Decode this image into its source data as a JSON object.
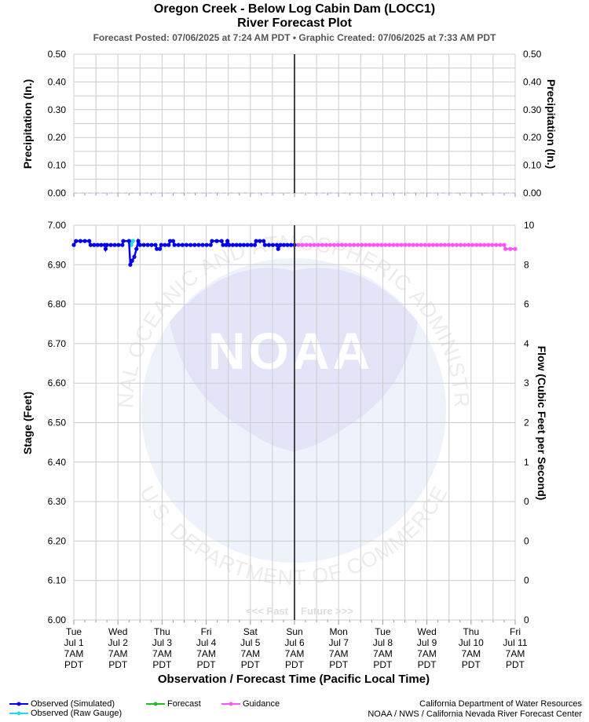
{
  "header": {
    "title": "Oregon Creek - Below Log Cabin Dam (LOCC1)",
    "subtitle": "River Forecast Plot",
    "posted_line": "Forecast Posted: 07/06/2025 at 7:24 AM PDT  •  Graphic Created: 07/06/2025 at 7:33 AM PDT"
  },
  "watermark": {
    "logo_text": "NOAA",
    "ring_top": "NATIONAL OCEANIC AND ATMOSPHERIC ADMINISTRATION",
    "ring_bottom": "U.S. DEPARTMENT OF COMMERCE"
  },
  "past_label": "<<< Past",
  "future_label": "Future >>>",
  "legend": {
    "observed_sim": "Observed (Simulated)",
    "observed_raw": "Observed (Raw Gauge)",
    "forecast": "Forecast",
    "guidance": "Guidance"
  },
  "credits": {
    "line1": "California Department of Water Resources",
    "line2": "NOAA / NWS / California Nevada River Forecast Center"
  },
  "colors": {
    "observed_sim": "#0000ee",
    "observed_raw": "#22dddd",
    "forecast": "#22bb22",
    "guidance": "#ff55ff",
    "precip": "#aaaaee",
    "now_line": "#444444",
    "grid": "#cccccc"
  },
  "chart_data": [
    {
      "type": "line",
      "panel": "precipitation",
      "ylabel": "Precipitation (In.)",
      "ylabel_right": "Precipitation (In.)",
      "ylim": [
        0,
        0.5
      ],
      "yticks": [
        "0.00",
        "0.10",
        "0.20",
        "0.30",
        "0.40",
        "0.50"
      ],
      "grid": true,
      "series": [
        {
          "values": [
            [
              0,
              0
            ],
            [
              10,
              0
            ]
          ]
        }
      ]
    },
    {
      "type": "line",
      "panel": "stage",
      "xlabel": "Observation / Forecast Time (Pacific Local Time)",
      "ylabel": "Stage (Feet)",
      "ylabel_right": "Flow (Cubic Feet per Second)",
      "ylim": [
        6.0,
        7.0
      ],
      "yticks": [
        "6.00",
        "6.10",
        "6.20",
        "6.30",
        "6.40",
        "6.50",
        "6.60",
        "6.70",
        "6.80",
        "6.90",
        "7.00"
      ],
      "yticks_right": [
        "0",
        "0",
        "0",
        "0",
        "1",
        "2",
        "3",
        "4",
        "6",
        "8",
        "10"
      ],
      "x_ticks": [
        [
          "Tue",
          "Jul 1",
          "7AM",
          "PDT"
        ],
        [
          "Wed",
          "Jul 2",
          "7AM",
          "PDT"
        ],
        [
          "Thu",
          "Jul 3",
          "7AM",
          "PDT"
        ],
        [
          "Fri",
          "Jul 4",
          "7AM",
          "PDT"
        ],
        [
          "Sat",
          "Jul 5",
          "7AM",
          "PDT"
        ],
        [
          "Sun",
          "Jul 6",
          "7AM",
          "PDT"
        ],
        [
          "Mon",
          "Jul 7",
          "7AM",
          "PDT"
        ],
        [
          "Tue",
          "Jul 8",
          "7AM",
          "PDT"
        ],
        [
          "Wed",
          "Jul 9",
          "7AM",
          "PDT"
        ],
        [
          "Thu",
          "Jul 10",
          "7AM",
          "PDT"
        ],
        [
          "Fri",
          "Jul 11",
          "7AM",
          "PDT"
        ]
      ],
      "now_x": 5,
      "grid": true,
      "series": [
        {
          "name": "Observed (Simulated)",
          "values": [
            [
              0,
              6.95
            ],
            [
              0.05,
              6.96
            ],
            [
              0.35,
              6.96
            ],
            [
              0.38,
              6.95
            ],
            [
              0.7,
              6.95
            ],
            [
              0.72,
              6.94
            ],
            [
              0.75,
              6.95
            ],
            [
              1.1,
              6.95
            ],
            [
              1.12,
              6.96
            ],
            [
              1.25,
              6.96
            ],
            [
              1.28,
              6.9
            ],
            [
              1.32,
              6.91
            ],
            [
              1.37,
              6.92
            ],
            [
              1.42,
              6.94
            ],
            [
              1.46,
              6.96
            ],
            [
              1.5,
              6.95
            ],
            [
              1.85,
              6.95
            ],
            [
              1.88,
              6.94
            ],
            [
              1.95,
              6.94
            ],
            [
              1.98,
              6.95
            ],
            [
              2.15,
              6.95
            ],
            [
              2.18,
              6.96
            ],
            [
              2.25,
              6.96
            ],
            [
              2.28,
              6.95
            ],
            [
              3.1,
              6.95
            ],
            [
              3.13,
              6.96
            ],
            [
              3.35,
              6.96
            ],
            [
              3.38,
              6.95
            ],
            [
              3.45,
              6.95
            ],
            [
              3.48,
              6.96
            ],
            [
              3.52,
              6.95
            ],
            [
              4.1,
              6.95
            ],
            [
              4.13,
              6.96
            ],
            [
              4.3,
              6.96
            ],
            [
              4.33,
              6.95
            ],
            [
              4.6,
              6.95
            ],
            [
              4.63,
              6.94
            ],
            [
              4.68,
              6.95
            ],
            [
              5.0,
              6.95
            ]
          ]
        },
        {
          "name": "Observed (Raw Gauge)",
          "values": [
            [
              1.26,
              6.96
            ],
            [
              1.3,
              6.95
            ],
            [
              1.34,
              6.96
            ]
          ]
        },
        {
          "name": "Forecast",
          "values": []
        },
        {
          "name": "Guidance",
          "values": [
            [
              5.0,
              6.95
            ],
            [
              9.75,
              6.95
            ],
            [
              9.78,
              6.94
            ],
            [
              10.0,
              6.94
            ]
          ]
        }
      ]
    }
  ]
}
